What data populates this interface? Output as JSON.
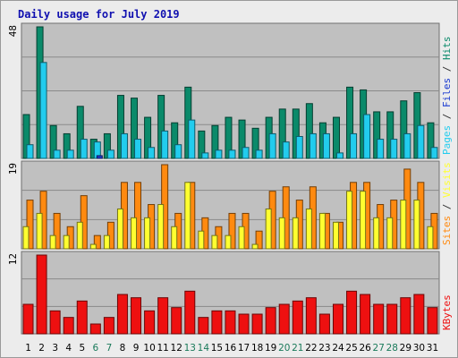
{
  "window": {
    "title": "Daily usage for July 2019"
  },
  "colors": {
    "pages": "#0f7a5a",
    "files": "#22ccee",
    "hits": "#0a8a6a",
    "visits": "#ffff30",
    "sites": "#ff8a10",
    "kbytes": "#ee1010",
    "plot_bg": "#c0c0c0",
    "weekend_label": "#1a7a5a"
  },
  "chart_data": [
    {
      "type": "bar",
      "panel": "hits",
      "title": "Daily usage for July 2019",
      "ylabel_parts": [
        {
          "text": "Pages",
          "color_key": "files"
        },
        {
          "text": " / ",
          "color_key": "sep"
        },
        {
          "text": "Files",
          "color_key": "blue"
        },
        {
          "text": " / ",
          "color_key": "sep"
        },
        {
          "text": "Hits",
          "color_key": "hits"
        }
      ],
      "ytick_max": "48",
      "ylim": [
        0,
        48
      ],
      "categories": [
        "1",
        "2",
        "3",
        "4",
        "5",
        "6",
        "7",
        "8",
        "9",
        "10",
        "11",
        "12",
        "13",
        "14",
        "15",
        "16",
        "17",
        "18",
        "19",
        "20",
        "21",
        "22",
        "23",
        "24",
        "25",
        "26",
        "27",
        "28",
        "29",
        "30",
        "31"
      ],
      "series": [
        {
          "name": "Hits",
          "color_key": "hits",
          "values": [
            16,
            48,
            12,
            9,
            19,
            7,
            9,
            23,
            22,
            15,
            23,
            13,
            26,
            10,
            12,
            15,
            14,
            11,
            15,
            18,
            18,
            20,
            13,
            15,
            26,
            25,
            17,
            17,
            21,
            24,
            13
          ]
        },
        {
          "name": "Files",
          "color_key": "files",
          "values": [
            5,
            35,
            3,
            3,
            7,
            6,
            3,
            9,
            7,
            4,
            10,
            5,
            14,
            2,
            3,
            3,
            4,
            3,
            9,
            6,
            8,
            9,
            9,
            2,
            9,
            16,
            7,
            7,
            9,
            12,
            4
          ]
        },
        {
          "name": "Pages",
          "color_key": "pages",
          "values": [
            0,
            0,
            0,
            0,
            0,
            1,
            0,
            0,
            0,
            0,
            0,
            0,
            0,
            0,
            0,
            0,
            0,
            0,
            0,
            0,
            0,
            0,
            0,
            0,
            0,
            0,
            0,
            0,
            0,
            0,
            0
          ]
        }
      ]
    },
    {
      "type": "bar",
      "panel": "visits",
      "ylabel_parts": [
        {
          "text": "Sites",
          "color_key": "sites"
        },
        {
          "text": " / ",
          "color_key": "sep"
        },
        {
          "text": "Visits",
          "color_key": "visits"
        }
      ],
      "ytick_max": "19",
      "ylim": [
        0,
        19
      ],
      "categories": [
        "1",
        "2",
        "3",
        "4",
        "5",
        "6",
        "7",
        "8",
        "9",
        "10",
        "11",
        "12",
        "13",
        "14",
        "15",
        "16",
        "17",
        "18",
        "19",
        "20",
        "21",
        "22",
        "23",
        "24",
        "25",
        "26",
        "27",
        "28",
        "29",
        "30",
        "31"
      ],
      "series": [
        {
          "name": "Visits",
          "color_key": "visits",
          "values": [
            5,
            8,
            3,
            3,
            6,
            1,
            3,
            9,
            7,
            7,
            10,
            5,
            15,
            4,
            3,
            3,
            5,
            1,
            9,
            7,
            7,
            9,
            8,
            6,
            13,
            13,
            7,
            7,
            11,
            11,
            5
          ]
        },
        {
          "name": "Sites",
          "color_key": "sites",
          "values": [
            11,
            13,
            8,
            5,
            12,
            3,
            6,
            15,
            15,
            10,
            19,
            8,
            15,
            7,
            5,
            8,
            8,
            4,
            13,
            14,
            11,
            14,
            8,
            6,
            15,
            15,
            10,
            11,
            18,
            15,
            8
          ]
        }
      ]
    },
    {
      "type": "bar",
      "panel": "kbytes",
      "ylabel_parts": [
        {
          "text": "KBytes",
          "color_key": "kbytes"
        }
      ],
      "ytick_max": "12",
      "ylim": [
        0,
        12
      ],
      "categories": [
        "1",
        "2",
        "3",
        "4",
        "5",
        "6",
        "7",
        "8",
        "9",
        "10",
        "11",
        "12",
        "13",
        "14",
        "15",
        "16",
        "17",
        "18",
        "19",
        "20",
        "21",
        "22",
        "23",
        "24",
        "25",
        "26",
        "27",
        "28",
        "29",
        "30",
        "31"
      ],
      "series": [
        {
          "name": "KBytes",
          "color_key": "kbytes",
          "values": [
            4.5,
            12,
            3.5,
            2.5,
            5,
            1.5,
            2.5,
            6,
            5.5,
            3.5,
            5.5,
            4,
            6.5,
            2.5,
            3.5,
            3.5,
            3,
            3,
            4,
            4.5,
            5,
            5.5,
            3,
            4.5,
            6.5,
            6,
            4.5,
            4.5,
            5.5,
            6,
            4
          ]
        }
      ]
    }
  ],
  "xaxis": {
    "labels": [
      "1",
      "2",
      "3",
      "4",
      "5",
      "6",
      "7",
      "8",
      "9",
      "10",
      "11",
      "12",
      "13",
      "14",
      "15",
      "16",
      "17",
      "18",
      "19",
      "20",
      "21",
      "22",
      "23",
      "24",
      "25",
      "26",
      "27",
      "28",
      "29",
      "30",
      "31"
    ],
    "weekend_days": [
      "6",
      "7",
      "13",
      "14",
      "20",
      "21",
      "27",
      "28"
    ]
  }
}
